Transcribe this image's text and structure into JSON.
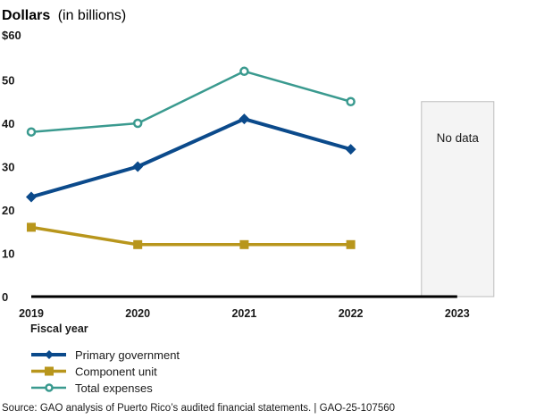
{
  "chart_data": {
    "type": "line",
    "title": "Dollars",
    "title_suffix": "(in billions)",
    "xlabel": "Fiscal year",
    "ylabel": "Dollars (in billions)",
    "categories": [
      "2019",
      "2020",
      "2021",
      "2022",
      "2023"
    ],
    "ylim": [
      0,
      60
    ],
    "y_ticks": [
      {
        "value": 0,
        "label": "0"
      },
      {
        "value": 10,
        "label": "10"
      },
      {
        "value": 20,
        "label": "20"
      },
      {
        "value": 30,
        "label": "30"
      },
      {
        "value": 40,
        "label": "40"
      },
      {
        "value": 50,
        "label": "50"
      },
      {
        "value": 60,
        "label": "$60"
      }
    ],
    "grid": false,
    "legend_position": "bottom-left",
    "series": [
      {
        "name": "Primary government",
        "color": "#0b4a8b",
        "marker": "diamond",
        "values": [
          23,
          30,
          41,
          34,
          null
        ]
      },
      {
        "name": "Component unit",
        "color": "#b8961c",
        "marker": "square",
        "values": [
          16,
          12,
          12,
          12,
          null
        ]
      },
      {
        "name": "Total expenses",
        "color": "#3a9a8f",
        "marker": "circle-open",
        "values": [
          38,
          40,
          52,
          45,
          null
        ]
      }
    ],
    "annotations": [
      {
        "category": "2023",
        "text": "No data"
      }
    ]
  },
  "source": "Source: GAO analysis of Puerto Rico’s audited financial statements.  |  GAO-25-107560"
}
